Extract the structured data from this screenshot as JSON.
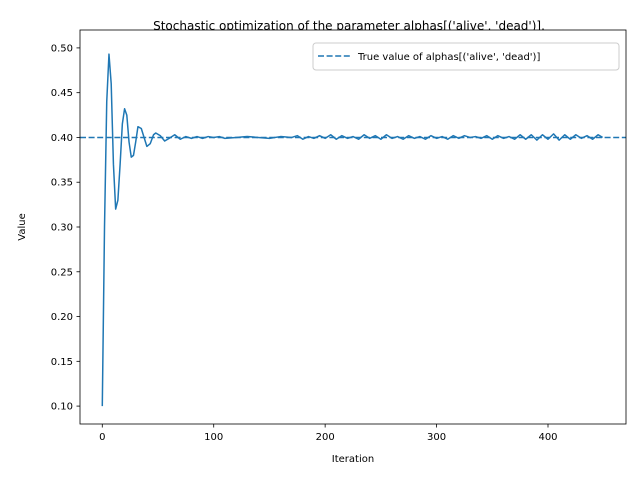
{
  "chart_data": {
    "type": "line",
    "title": "Stochastic optimization of the parameter alphas[('alive', 'dead')].",
    "xlabel": "Iteration",
    "ylabel": "Value",
    "xlim": [
      -20,
      470
    ],
    "ylim": [
      0.08,
      0.52
    ],
    "xticks": [
      0,
      100,
      200,
      300,
      400
    ],
    "yticks": [
      0.1,
      0.15,
      0.2,
      0.25,
      0.3,
      0.35,
      0.4,
      0.45,
      0.5
    ],
    "xtick_labels": [
      "0",
      "100",
      "200",
      "300",
      "400"
    ],
    "ytick_labels": [
      "0.10",
      "0.15",
      "0.20",
      "0.25",
      "0.30",
      "0.35",
      "0.40",
      "0.45",
      "0.50"
    ],
    "grid": false,
    "legend_position": "top-right",
    "colors": {
      "line": "#1f77b4"
    },
    "reference_lines": [
      {
        "name": "True value of alphas[('alive', 'dead')]",
        "y": 0.4,
        "style": "dashed"
      }
    ],
    "series": [
      {
        "x": [
          0,
          2,
          4,
          6,
          8,
          10,
          12,
          14,
          16,
          18,
          20,
          22,
          24,
          26,
          28,
          30,
          32,
          35,
          38,
          40,
          43,
          46,
          48,
          52,
          56,
          60,
          65,
          70,
          75,
          80,
          85,
          90,
          95,
          100,
          105,
          110,
          120,
          130,
          140,
          150,
          160,
          170,
          175,
          180,
          185,
          190,
          195,
          200,
          205,
          210,
          215,
          220,
          225,
          230,
          235,
          240,
          245,
          250,
          255,
          260,
          265,
          270,
          275,
          280,
          285,
          290,
          295,
          300,
          305,
          310,
          315,
          320,
          325,
          330,
          335,
          340,
          345,
          350,
          355,
          360,
          365,
          370,
          375,
          380,
          385,
          390,
          395,
          400,
          405,
          410,
          415,
          420,
          425,
          430,
          435,
          440,
          445,
          449
        ],
        "y": [
          0.1,
          0.3,
          0.44,
          0.493,
          0.46,
          0.37,
          0.32,
          0.33,
          0.37,
          0.415,
          0.432,
          0.425,
          0.395,
          0.378,
          0.38,
          0.395,
          0.412,
          0.41,
          0.398,
          0.39,
          0.393,
          0.403,
          0.405,
          0.402,
          0.396,
          0.399,
          0.403,
          0.398,
          0.401,
          0.399,
          0.401,
          0.399,
          0.401,
          0.4,
          0.401,
          0.399,
          0.4,
          0.401,
          0.4,
          0.399,
          0.401,
          0.4,
          0.402,
          0.398,
          0.401,
          0.399,
          0.402,
          0.399,
          0.403,
          0.398,
          0.402,
          0.399,
          0.401,
          0.398,
          0.403,
          0.399,
          0.402,
          0.398,
          0.403,
          0.399,
          0.401,
          0.398,
          0.402,
          0.399,
          0.401,
          0.398,
          0.402,
          0.399,
          0.401,
          0.398,
          0.402,
          0.399,
          0.402,
          0.4,
          0.401,
          0.399,
          0.402,
          0.398,
          0.402,
          0.399,
          0.401,
          0.398,
          0.403,
          0.398,
          0.403,
          0.397,
          0.403,
          0.398,
          0.404,
          0.397,
          0.403,
          0.398,
          0.403,
          0.399,
          0.402,
          0.398,
          0.403,
          0.4
        ]
      }
    ]
  }
}
